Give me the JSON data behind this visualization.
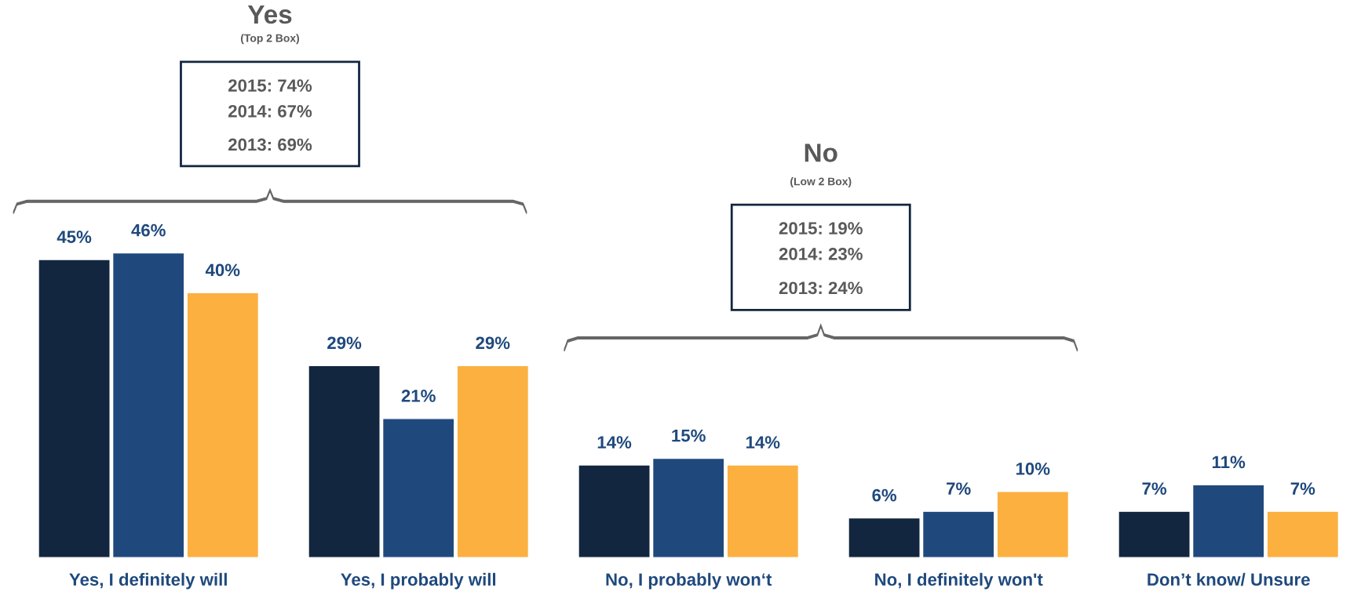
{
  "chart_data": {
    "type": "bar",
    "categories": [
      "Yes, I definitely will",
      "Yes, I probably will",
      "No, I probably won‘t",
      "No, I definitely won't",
      "Don’t know/ Unsure"
    ],
    "series": [
      {
        "color": "#12263f",
        "values": [
          45,
          29,
          14,
          6,
          7
        ],
        "value_labels": [
          "45%",
          "29%",
          "14%",
          "6%",
          "7%"
        ]
      },
      {
        "color": "#1f497d",
        "values": [
          46,
          21,
          15,
          7,
          11
        ],
        "value_labels": [
          "46%",
          "21%",
          "15%",
          "7%",
          "11%"
        ]
      },
      {
        "color": "#fbb040",
        "values": [
          40,
          29,
          14,
          10,
          7
        ],
        "value_labels": [
          "40%",
          "29%",
          "14%",
          "10%",
          "7%"
        ]
      }
    ],
    "legend": false,
    "grid": false,
    "tick_labels": "x",
    "annotations": [
      "Yes",
      "(Top 2 Box)",
      "2015: 74%",
      "2014: 67%",
      "2013: 69%",
      "No",
      "(Low 2 Box)",
      "2015: 19%",
      "2014: 23%",
      "2013: 24%"
    ]
  }
}
